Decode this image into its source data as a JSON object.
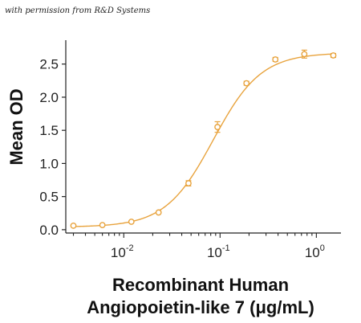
{
  "permission_text": "with permission from R&D Systems",
  "chart_data": {
    "type": "scatter",
    "title": "",
    "xlabel_line1": "Recombinant Human",
    "xlabel_line2": "Angiopoietin-like 7 (μg/mL)",
    "ylabel": "Mean OD",
    "xscale": "log",
    "xlim": [
      0.0025,
      1.8
    ],
    "ylim": [
      -0.05,
      2.8
    ],
    "grid": false,
    "legend": "none",
    "color": "#E8A33D",
    "yticks": [
      0.0,
      0.5,
      1.0,
      1.5,
      2.0,
      2.5
    ],
    "ytick_labels": [
      "0.0",
      "0.5",
      "1.0",
      "1.5",
      "2.0",
      "2.5"
    ],
    "xticks": [
      0.01,
      0.1,
      1
    ],
    "xtick_labels": [
      {
        "base": "10",
        "exp": "-2"
      },
      {
        "base": "10",
        "exp": "-1"
      },
      {
        "base": "10",
        "exp": "0"
      }
    ],
    "points": [
      {
        "x": 0.003,
        "y": 0.06
      },
      {
        "x": 0.006,
        "y": 0.07
      },
      {
        "x": 0.012,
        "y": 0.12
      },
      {
        "x": 0.023,
        "y": 0.26
      },
      {
        "x": 0.047,
        "y": 0.7,
        "err": 0.04
      },
      {
        "x": 0.094,
        "y": 1.55,
        "err": 0.08
      },
      {
        "x": 0.188,
        "y": 2.21,
        "err": 0.03
      },
      {
        "x": 0.375,
        "y": 2.57,
        "err": 0.03
      },
      {
        "x": 0.75,
        "y": 2.65,
        "err": 0.06
      },
      {
        "x": 1.5,
        "y": 2.63,
        "err": 0.03
      }
    ],
    "fit": {
      "model": "4PL",
      "bottom": 0.04,
      "top": 2.67,
      "ec50": 0.085,
      "hill": 1.75
    }
  }
}
